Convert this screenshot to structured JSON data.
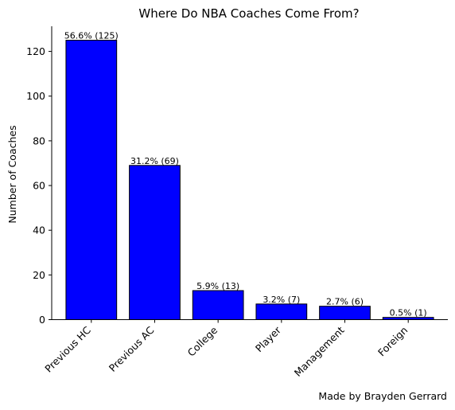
{
  "chart_data": {
    "type": "bar",
    "title": "Where Do NBA Coaches Come From?",
    "xlabel": "",
    "ylabel": "Number of Coaches",
    "categories": [
      "Previous HC",
      "Previous AC",
      "College",
      "Player",
      "Management",
      "Foreign"
    ],
    "values": [
      125,
      69,
      13,
      7,
      6,
      1
    ],
    "data_labels": [
      "56.6% (125)",
      "31.2% (69)",
      "5.9% (13)",
      "3.2% (7)",
      "2.7% (6)",
      "0.5% (1)"
    ],
    "ylim": [
      0,
      131.25
    ],
    "yticks": [
      0,
      20,
      40,
      60,
      80,
      100,
      120
    ],
    "grid": false,
    "bar_color": "#0000ff",
    "edge_color": "#000000"
  },
  "credit": "Made by Brayden Gerrard"
}
